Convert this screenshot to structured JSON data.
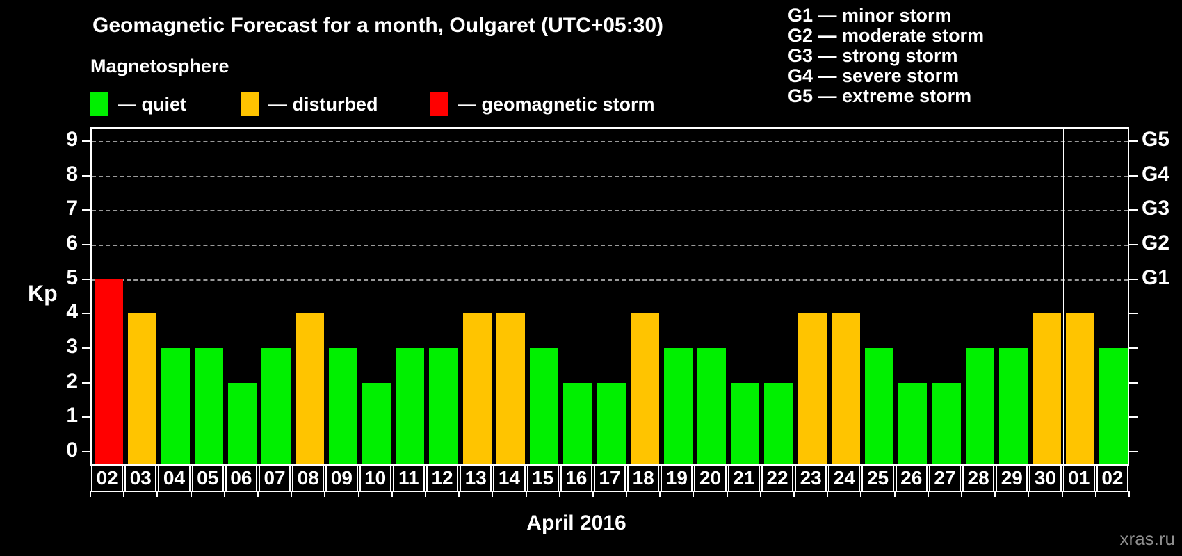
{
  "header": {
    "title": "Geomagnetic Forecast for a month, Oulgaret (UTC+05:30)",
    "subtitle": "Magnetosphere",
    "watermark": "xras.ru"
  },
  "legend": {
    "items": [
      {
        "key": "quiet",
        "label": "— quiet",
        "color": "#00f000"
      },
      {
        "key": "disturbed",
        "label": "— disturbed",
        "color": "#ffc400"
      },
      {
        "key": "storm",
        "label": "— geomagnetic storm",
        "color": "#ff0000"
      }
    ]
  },
  "storm_scale_legend": [
    "G1 — minor storm",
    "G2 — moderate storm",
    "G3 — strong storm",
    "G4 — severe storm",
    "G5 — extreme storm"
  ],
  "chart_data": {
    "type": "bar",
    "title": "Geomagnetic Forecast for a month, Oulgaret (UTC+05:30)",
    "xlabel": "April 2016",
    "ylabel": "Kp",
    "ylim": [
      0,
      9
    ],
    "yticks": [
      0,
      1,
      2,
      3,
      4,
      5,
      6,
      7,
      8,
      9
    ],
    "grid": "dashed horizontal lines at Kp 5–9 only",
    "legend_position": "top-left",
    "right_axis_labels": [
      {
        "label": "G1",
        "kp": 5
      },
      {
        "label": "G2",
        "kp": 6
      },
      {
        "label": "G3",
        "kp": 7
      },
      {
        "label": "G4",
        "kp": 8
      },
      {
        "label": "G5",
        "kp": 9
      }
    ],
    "status_colors": {
      "quiet": "#00f000",
      "disturbed": "#ffc400",
      "storm": "#ff0000"
    },
    "month_separator_before_day_index": 29,
    "days": [
      {
        "day": "02",
        "kp": 5,
        "status": "storm"
      },
      {
        "day": "03",
        "kp": 4,
        "status": "disturbed"
      },
      {
        "day": "04",
        "kp": 3,
        "status": "quiet"
      },
      {
        "day": "05",
        "kp": 3,
        "status": "quiet"
      },
      {
        "day": "06",
        "kp": 2,
        "status": "quiet"
      },
      {
        "day": "07",
        "kp": 3,
        "status": "quiet"
      },
      {
        "day": "08",
        "kp": 4,
        "status": "disturbed"
      },
      {
        "day": "09",
        "kp": 3,
        "status": "quiet"
      },
      {
        "day": "10",
        "kp": 2,
        "status": "quiet"
      },
      {
        "day": "11",
        "kp": 3,
        "status": "quiet"
      },
      {
        "day": "12",
        "kp": 3,
        "status": "quiet"
      },
      {
        "day": "13",
        "kp": 4,
        "status": "disturbed"
      },
      {
        "day": "14",
        "kp": 4,
        "status": "disturbed"
      },
      {
        "day": "15",
        "kp": 3,
        "status": "quiet"
      },
      {
        "day": "16",
        "kp": 2,
        "status": "quiet"
      },
      {
        "day": "17",
        "kp": 2,
        "status": "quiet"
      },
      {
        "day": "18",
        "kp": 4,
        "status": "disturbed"
      },
      {
        "day": "19",
        "kp": 3,
        "status": "quiet"
      },
      {
        "day": "20",
        "kp": 3,
        "status": "quiet"
      },
      {
        "day": "21",
        "kp": 2,
        "status": "quiet"
      },
      {
        "day": "22",
        "kp": 2,
        "status": "quiet"
      },
      {
        "day": "23",
        "kp": 4,
        "status": "disturbed"
      },
      {
        "day": "24",
        "kp": 4,
        "status": "disturbed"
      },
      {
        "day": "25",
        "kp": 3,
        "status": "quiet"
      },
      {
        "day": "26",
        "kp": 2,
        "status": "quiet"
      },
      {
        "day": "27",
        "kp": 2,
        "status": "quiet"
      },
      {
        "day": "28",
        "kp": 3,
        "status": "quiet"
      },
      {
        "day": "29",
        "kp": 3,
        "status": "quiet"
      },
      {
        "day": "30",
        "kp": 4,
        "status": "disturbed"
      },
      {
        "day": "01",
        "kp": 4,
        "status": "disturbed"
      },
      {
        "day": "02",
        "kp": 3,
        "status": "quiet"
      }
    ]
  }
}
